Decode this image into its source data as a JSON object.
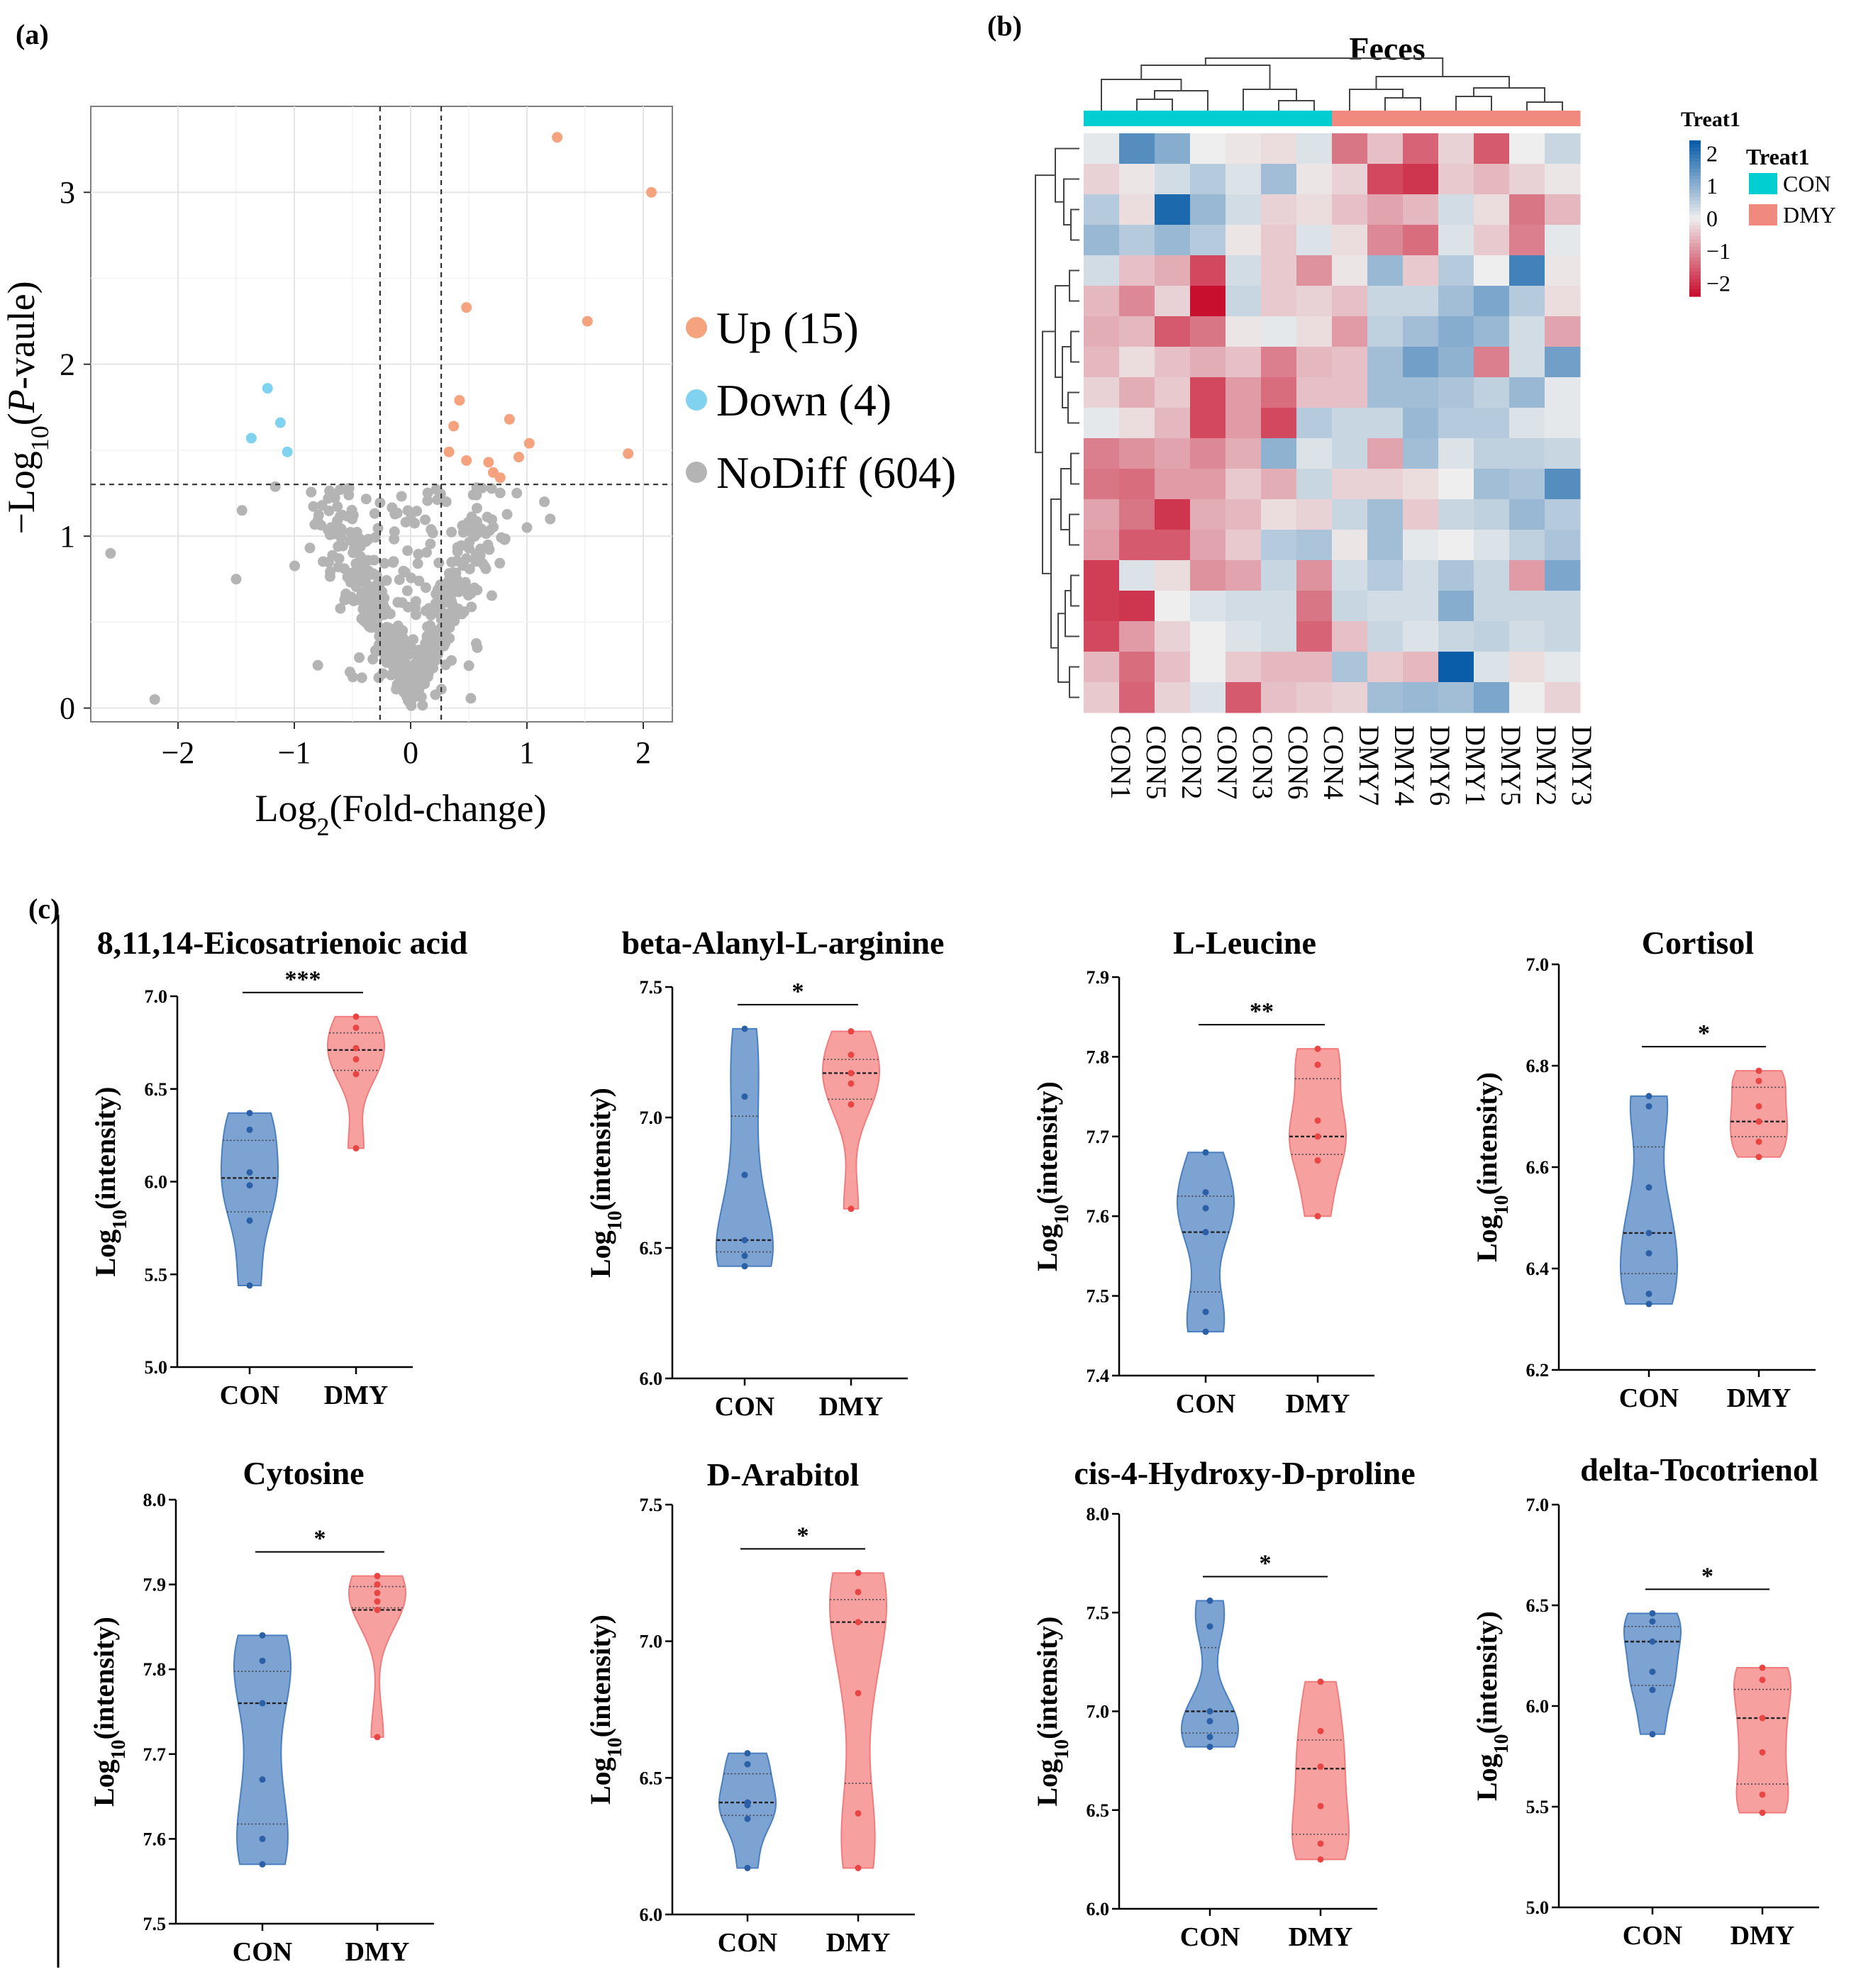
{
  "panel_labels": {
    "a": "(a)",
    "b": "(b)",
    "c": "(c)"
  },
  "colors": {
    "up": "#F5A37E",
    "down": "#7FD3EE",
    "nodiff": "#B4B4B4",
    "con_group": "#00CED1",
    "dmy_group": "#F08A7E",
    "violin_con": "#4A7FC1",
    "violin_dmy": "#F27B7B",
    "heat_high": "#0A5DA8",
    "heat_mid": "#EEEEEE",
    "heat_low": "#C8102E"
  },
  "chart_data": [
    {
      "type": "scatter",
      "name": "volcano",
      "xlabel_main": "Log",
      "xlabel_sub": "2",
      "xlabel_rest": "(Fold-change)",
      "ylabel_main": "−Log",
      "ylabel_sub": "10",
      "ylabel_rest": "-vaule)",
      "ylabel_p": "P",
      "ylabel_paren": "(",
      "xlim": [
        -2.75,
        2.25
      ],
      "ylim": [
        -0.08,
        3.5
      ],
      "xticks": [
        -2,
        -1,
        0,
        1,
        2
      ],
      "xtick_labels": [
        "−2",
        "−1",
        "0",
        "1",
        "2"
      ],
      "yticks": [
        0,
        1,
        2,
        3
      ],
      "ytick_labels": [
        "0",
        "1",
        "2",
        "3"
      ],
      "fc_thresholds": [
        -0.263,
        0.263
      ],
      "p_threshold": 1.301,
      "legend": [
        {
          "label": "Up (15)",
          "category": "up"
        },
        {
          "label": "Down (4)",
          "category": "down"
        },
        {
          "label": "NoDiff (604)",
          "category": "nodiff"
        }
      ],
      "up_points": [
        [
          1.26,
          3.32
        ],
        [
          2.07,
          3.0
        ],
        [
          0.48,
          2.33
        ],
        [
          1.52,
          2.25
        ],
        [
          0.42,
          1.79
        ],
        [
          0.85,
          1.68
        ],
        [
          0.37,
          1.64
        ],
        [
          1.02,
          1.54
        ],
        [
          0.33,
          1.49
        ],
        [
          1.87,
          1.48
        ],
        [
          0.48,
          1.44
        ],
        [
          0.93,
          1.46
        ],
        [
          0.67,
          1.43
        ],
        [
          0.71,
          1.37
        ],
        [
          0.77,
          1.34
        ]
      ],
      "down_points": [
        [
          -1.23,
          1.86
        ],
        [
          -1.12,
          1.66
        ],
        [
          -1.37,
          1.57
        ],
        [
          -1.06,
          1.49
        ]
      ]
    },
    {
      "type": "heatmap",
      "name": "feces-heatmap",
      "title": "Feces",
      "annotation_title": "Treat1",
      "legend_title": "Treat1",
      "legend_items": [
        {
          "label": "CON",
          "group": "con"
        },
        {
          "label": "DMY",
          "group": "dmy"
        }
      ],
      "scale_ticks": [
        {
          "value": 2,
          "label": "2"
        },
        {
          "value": 1,
          "label": "1"
        },
        {
          "value": 0,
          "label": "0"
        },
        {
          "value": -1,
          "label": "−1"
        },
        {
          "value": -2,
          "label": "−2"
        }
      ],
      "columns": [
        "CON1",
        "CON5",
        "CON2",
        "CON7",
        "CON3",
        "CON6",
        "CON4",
        "DMY7",
        "DMY4",
        "DMY6",
        "DMY1",
        "DMY5",
        "DMY2",
        "DMY3"
      ],
      "column_groups": [
        "con",
        "con",
        "con",
        "con",
        "con",
        "con",
        "con",
        "dmy",
        "dmy",
        "dmy",
        "dmy",
        "dmy",
        "dmy",
        "dmy"
      ],
      "values": [
        [
          0.1,
          1.6,
          1.1,
          0.0,
          -0.1,
          -0.2,
          0.2,
          -1.3,
          -0.5,
          -1.5,
          -0.3,
          -1.6,
          0.0,
          0.4
        ],
        [
          -0.3,
          -0.1,
          0.3,
          0.6,
          0.2,
          0.8,
          -0.1,
          -0.3,
          -1.8,
          -2.0,
          -0.4,
          -0.6,
          -0.3,
          -0.1
        ],
        [
          0.6,
          -0.2,
          2.2,
          0.9,
          0.3,
          -0.3,
          -0.2,
          -0.5,
          -0.8,
          -0.6,
          0.3,
          -0.2,
          -1.3,
          -0.6
        ],
        [
          0.9,
          0.6,
          0.9,
          0.6,
          -0.1,
          -0.4,
          0.2,
          -0.2,
          -1.1,
          -1.4,
          0.2,
          -0.4,
          -1.2,
          0.1
        ],
        [
          0.3,
          -0.5,
          -0.7,
          -1.8,
          0.3,
          -0.4,
          -1.0,
          -0.1,
          0.9,
          -0.4,
          0.6,
          0.0,
          1.8,
          -0.1
        ],
        [
          -0.6,
          -1.1,
          -0.3,
          -2.4,
          0.4,
          -0.4,
          -0.3,
          -0.5,
          0.4,
          0.4,
          0.8,
          1.2,
          0.6,
          -0.2
        ],
        [
          -0.7,
          -0.6,
          -1.6,
          -1.3,
          -0.1,
          0.1,
          -0.2,
          -0.9,
          0.5,
          0.8,
          1.1,
          0.9,
          0.3,
          -0.8
        ],
        [
          -0.6,
          -0.2,
          -0.5,
          -0.7,
          -0.5,
          -1.2,
          -0.6,
          -0.5,
          0.8,
          1.3,
          1.0,
          -1.2,
          0.3,
          1.3
        ],
        [
          -0.3,
          -0.7,
          -0.4,
          -1.8,
          -0.9,
          -1.4,
          -0.5,
          -0.5,
          0.8,
          0.8,
          0.7,
          0.5,
          0.9,
          0.1
        ],
        [
          0.1,
          -0.2,
          -0.6,
          -1.8,
          -0.9,
          -1.8,
          0.6,
          0.4,
          0.4,
          0.9,
          0.6,
          0.6,
          0.2,
          0.1
        ],
        [
          -1.2,
          -1.0,
          -0.8,
          -1.1,
          -0.7,
          1.0,
          0.2,
          0.4,
          -0.8,
          0.8,
          0.2,
          0.5,
          0.5,
          0.4
        ],
        [
          -1.3,
          -1.4,
          -0.9,
          -0.9,
          -0.4,
          -0.7,
          0.4,
          -0.3,
          -0.3,
          -0.2,
          0.0,
          0.8,
          0.7,
          1.6
        ],
        [
          -0.8,
          -1.3,
          -2.0,
          -0.7,
          -0.6,
          -0.2,
          -0.3,
          0.4,
          0.8,
          -0.4,
          0.4,
          0.5,
          0.9,
          0.6
        ],
        [
          -0.9,
          -1.6,
          -1.6,
          -0.8,
          -0.4,
          0.6,
          0.7,
          -0.1,
          0.8,
          0.1,
          0.0,
          0.2,
          0.5,
          0.7
        ],
        [
          -1.9,
          0.2,
          -0.2,
          -1.0,
          -0.8,
          0.4,
          -1.0,
          0.3,
          0.6,
          0.3,
          0.7,
          0.4,
          -0.9,
          1.2
        ],
        [
          -1.9,
          -2.0,
          0.0,
          0.2,
          0.3,
          0.3,
          -1.3,
          0.4,
          0.3,
          0.3,
          1.1,
          0.4,
          0.4,
          0.4
        ],
        [
          -1.8,
          -0.9,
          -0.3,
          0.0,
          0.2,
          0.3,
          -1.5,
          -0.5,
          0.4,
          0.2,
          0.4,
          0.5,
          0.3,
          0.4
        ],
        [
          -0.6,
          -1.4,
          -0.5,
          0.0,
          -0.4,
          -0.6,
          -0.6,
          0.7,
          -0.4,
          -0.6,
          2.4,
          0.2,
          -0.2,
          0.1
        ],
        [
          -0.4,
          -1.5,
          -0.3,
          0.2,
          -1.6,
          -0.5,
          -0.4,
          -0.3,
          0.8,
          0.9,
          0.8,
          1.2,
          0.0,
          -0.3
        ]
      ]
    },
    {
      "type": "violin",
      "title": "8,11,14-Eicosatrienoic acid",
      "ylabel": "Log10(intensity)",
      "ylabel_main": "Log",
      "ylabel_sub": "10",
      "ylabel_rest": "(intensity)",
      "ylim": [
        5.0,
        7.0
      ],
      "yticks": [
        5.0,
        5.5,
        6.0,
        6.5,
        7.0
      ],
      "ytick_labels": [
        "5.0",
        "5.5",
        "6.0",
        "6.5",
        "7.0"
      ],
      "significance": "***",
      "categories": [
        "CON",
        "DMY"
      ],
      "groups": [
        {
          "name": "CON",
          "points": [
            5.44,
            5.79,
            5.98,
            6.05,
            6.28,
            6.37
          ],
          "median": 6.02
        },
        {
          "name": "DMY",
          "points": [
            6.18,
            6.58,
            6.66,
            6.72,
            6.83,
            6.89
          ],
          "median": 6.71
        }
      ]
    },
    {
      "type": "violin",
      "title": "beta-Alanyl-L-arginine",
      "ylabel": "Log10(intensity)",
      "ylabel_main": "Log",
      "ylabel_sub": "10",
      "ylabel_rest": "(intensity)",
      "ylim": [
        6.0,
        7.5
      ],
      "yticks": [
        6.0,
        6.5,
        7.0,
        7.5
      ],
      "ytick_labels": [
        "6.0",
        "6.5",
        "7.0",
        "7.5"
      ],
      "significance": "*",
      "categories": [
        "CON",
        "DMY"
      ],
      "groups": [
        {
          "name": "CON",
          "points": [
            6.43,
            6.47,
            6.53,
            6.78,
            7.08,
            7.34
          ],
          "median": 6.53
        },
        {
          "name": "DMY",
          "points": [
            6.65,
            7.05,
            7.13,
            7.17,
            7.24,
            7.33
          ],
          "median": 7.17
        }
      ]
    },
    {
      "type": "violin",
      "title": "L-Leucine",
      "ylabel": "Log10(intensity)",
      "ylabel_main": "Log",
      "ylabel_sub": "10",
      "ylabel_rest": "(intensity)",
      "ylim": [
        7.4,
        7.9
      ],
      "yticks": [
        7.4,
        7.5,
        7.6,
        7.7,
        7.8,
        7.9
      ],
      "ytick_labels": [
        "7.4",
        "7.5",
        "7.6",
        "7.7",
        "7.8",
        "7.9"
      ],
      "significance": "**",
      "categories": [
        "CON",
        "DMY"
      ],
      "groups": [
        {
          "name": "CON",
          "points": [
            7.455,
            7.48,
            7.58,
            7.61,
            7.63,
            7.68
          ],
          "median": 7.58
        },
        {
          "name": "DMY",
          "points": [
            7.6,
            7.67,
            7.7,
            7.72,
            7.79,
            7.81
          ],
          "median": 7.7
        }
      ]
    },
    {
      "type": "violin",
      "title": "Cortisol",
      "ylabel": "Log10(intensity)",
      "ylabel_main": "Log",
      "ylabel_sub": "10",
      "ylabel_rest": "(intensity)",
      "ylim": [
        6.2,
        7.0
      ],
      "yticks": [
        6.2,
        6.4,
        6.6,
        6.8,
        7.0
      ],
      "ytick_labels": [
        "6.2",
        "6.4",
        "6.6",
        "6.8",
        "7.0"
      ],
      "significance": "*",
      "categories": [
        "CON",
        "DMY"
      ],
      "groups": [
        {
          "name": "CON",
          "points": [
            6.33,
            6.35,
            6.43,
            6.47,
            6.56,
            6.72,
            6.74
          ],
          "median": 6.47
        },
        {
          "name": "DMY",
          "points": [
            6.62,
            6.65,
            6.69,
            6.72,
            6.77,
            6.79
          ],
          "median": 6.69
        }
      ]
    },
    {
      "type": "violin",
      "title": "Cytosine",
      "ylabel": "Log10(intensity)",
      "ylabel_main": "Log",
      "ylabel_sub": "10",
      "ylabel_rest": "(intensity)",
      "ylim": [
        7.5,
        8.0
      ],
      "yticks": [
        7.5,
        7.6,
        7.7,
        7.8,
        7.9,
        8.0
      ],
      "ytick_labels": [
        "7.5",
        "7.6",
        "7.7",
        "7.8",
        "7.9",
        "8.0"
      ],
      "significance": "*",
      "categories": [
        "CON",
        "DMY"
      ],
      "groups": [
        {
          "name": "CON",
          "points": [
            7.57,
            7.6,
            7.67,
            7.76,
            7.81,
            7.84
          ],
          "median": 7.76
        },
        {
          "name": "DMY",
          "points": [
            7.72,
            7.87,
            7.88,
            7.89,
            7.9,
            7.91
          ],
          "median": 7.87
        }
      ]
    },
    {
      "type": "violin",
      "title": "D-Arabitol",
      "ylabel": "Log10(intensity)",
      "ylabel_main": "Log",
      "ylabel_sub": "10",
      "ylabel_rest": "(intensity)",
      "ylim": [
        6.0,
        7.5
      ],
      "yticks": [
        6.0,
        6.5,
        7.0,
        7.5
      ],
      "ytick_labels": [
        "6.0",
        "6.5",
        "7.0",
        "7.5"
      ],
      "significance": "*",
      "categories": [
        "CON",
        "DMY"
      ],
      "groups": [
        {
          "name": "CON",
          "points": [
            6.17,
            6.35,
            6.4,
            6.41,
            6.55,
            6.59
          ],
          "median": 6.41
        },
        {
          "name": "DMY",
          "points": [
            6.17,
            6.37,
            6.81,
            7.07,
            7.18,
            7.25
          ],
          "median": 7.07
        }
      ]
    },
    {
      "type": "violin",
      "title": "cis-4-Hydroxy-D-proline",
      "ylabel": "Log10(intensity)",
      "ylabel_main": "Log",
      "ylabel_sub": "10",
      "ylabel_rest": "(intensity)",
      "ylim": [
        6.0,
        8.0
      ],
      "yticks": [
        6.0,
        6.5,
        7.0,
        7.5,
        8.0
      ],
      "ytick_labels": [
        "6.0",
        "6.5",
        "7.0",
        "7.5",
        "8.0"
      ],
      "significance": "*",
      "categories": [
        "CON",
        "DMY"
      ],
      "groups": [
        {
          "name": "CON",
          "points": [
            6.82,
            6.87,
            6.95,
            7.0,
            7.43,
            7.56
          ],
          "median": 7.0
        },
        {
          "name": "DMY",
          "points": [
            6.25,
            6.33,
            6.52,
            6.72,
            6.9,
            7.15
          ],
          "median": 6.71
        }
      ]
    },
    {
      "type": "violin",
      "title": "delta-Tocotrienol",
      "ylabel": "Log10(intensity)",
      "ylabel_main": "Log",
      "ylabel_sub": "10",
      "ylabel_rest": "(intensity)",
      "ylim": [
        5.0,
        7.0
      ],
      "yticks": [
        5.0,
        5.5,
        6.0,
        6.5,
        7.0
      ],
      "ytick_labels": [
        "5.0",
        "5.5",
        "6.0",
        "6.5",
        "7.0"
      ],
      "significance": "*",
      "categories": [
        "CON",
        "DMY"
      ],
      "groups": [
        {
          "name": "CON",
          "points": [
            5.86,
            6.08,
            6.17,
            6.32,
            6.42,
            6.46
          ],
          "median": 6.32
        },
        {
          "name": "DMY",
          "points": [
            5.47,
            5.56,
            5.77,
            5.94,
            6.13,
            6.19
          ],
          "median": 5.94
        }
      ]
    }
  ]
}
